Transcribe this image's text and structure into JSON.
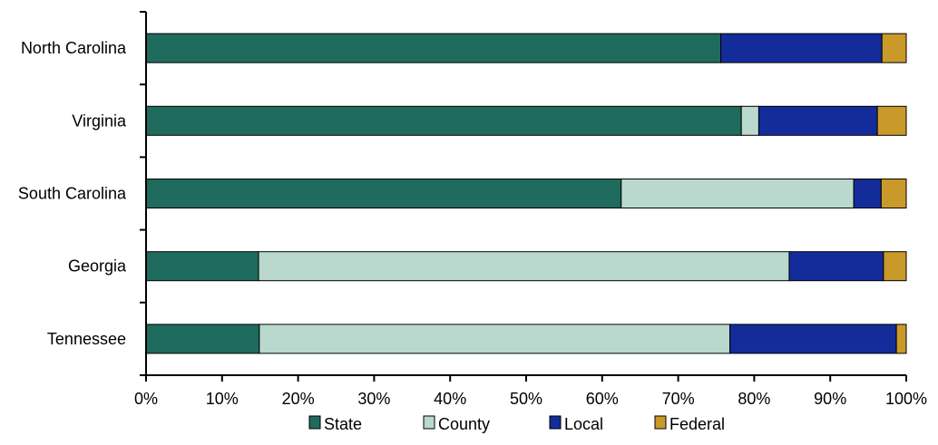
{
  "chart_data": {
    "type": "bar",
    "orientation": "horizontal",
    "stacked": true,
    "title": "",
    "xlabel": "",
    "ylabel": "",
    "categories": [
      "North Carolina",
      "Virginia",
      "South Carolina",
      "Georgia",
      "Tennessee"
    ],
    "series": [
      {
        "name": "State",
        "color": "#1f6b5e",
        "values": [
          75.6,
          78.3,
          62.5,
          14.8,
          14.9
        ]
      },
      {
        "name": "County",
        "color": "#b9d8ce",
        "values": [
          0.0,
          2.3,
          30.6,
          69.8,
          61.9
        ]
      },
      {
        "name": "Local",
        "color": "#142c9a",
        "values": [
          21.2,
          15.6,
          3.6,
          12.4,
          21.9
        ]
      },
      {
        "name": "Federal",
        "color": "#c99a2a",
        "values": [
          3.2,
          3.8,
          3.3,
          3.0,
          1.3
        ]
      }
    ],
    "xlim": [
      0,
      100
    ],
    "x_ticks": [
      "0%",
      "10%",
      "20%",
      "30%",
      "40%",
      "50%",
      "60%",
      "70%",
      "80%",
      "90%",
      "100%"
    ],
    "grid": false,
    "legend_position": "bottom"
  }
}
